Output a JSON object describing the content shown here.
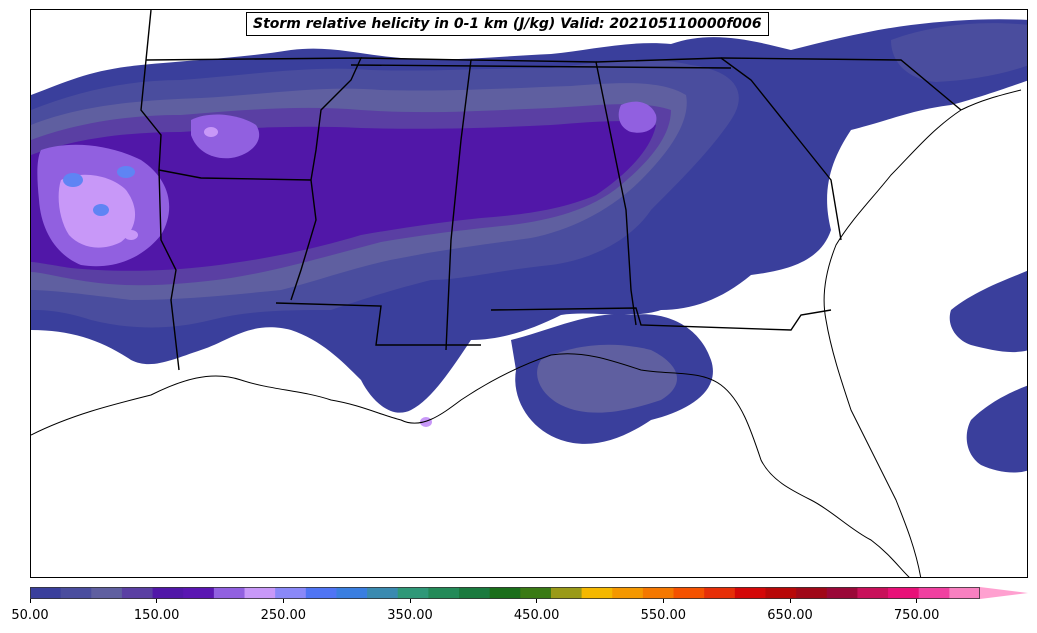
{
  "title": "Storm relative helicity in 0-1 km (J/kg) Valid: 202105110000f006",
  "colorbar": {
    "min": 50,
    "max": 800,
    "step": 25,
    "extend": "max",
    "tick_labels": [
      "50.00",
      "150.00",
      "250.00",
      "350.00",
      "450.00",
      "550.00",
      "650.00",
      "750.00"
    ],
    "tick_values": [
      50,
      150,
      250,
      350,
      450,
      550,
      650,
      750
    ],
    "colors": [
      "#3a3f9c",
      "#4a4d9e",
      "#5f5fa0",
      "#5a3fa3",
      "#5117a8",
      "#5a16b2",
      "#9160e0",
      "#c898f8",
      "#8a88f8",
      "#4f74f4",
      "#3a7ee0",
      "#3a8ab0",
      "#2f9878",
      "#238a58",
      "#1a7a3e",
      "#1a6e1a",
      "#3a7a14",
      "#9a9a18",
      "#f5b800",
      "#f59800",
      "#f57800",
      "#f55200",
      "#e62f08",
      "#d40808",
      "#b80808",
      "#a00818",
      "#9a0838",
      "#c8105a",
      "#e81078",
      "#f040a0",
      "#f880c0"
    ],
    "extend_color": "#ffa0d0"
  },
  "map": {
    "region": "Southeastern United States",
    "field_colors": {
      "low": "#3a3f9c",
      "low_mid": "#4a4d9e",
      "mid": "#5f5fa0",
      "mid_high": "#5a3fa3",
      "high": "#5117a8",
      "very_high": "#9160e0",
      "extreme": "#c898f8",
      "peak": "#5f84f4"
    },
    "boundary_color": "#000000"
  }
}
